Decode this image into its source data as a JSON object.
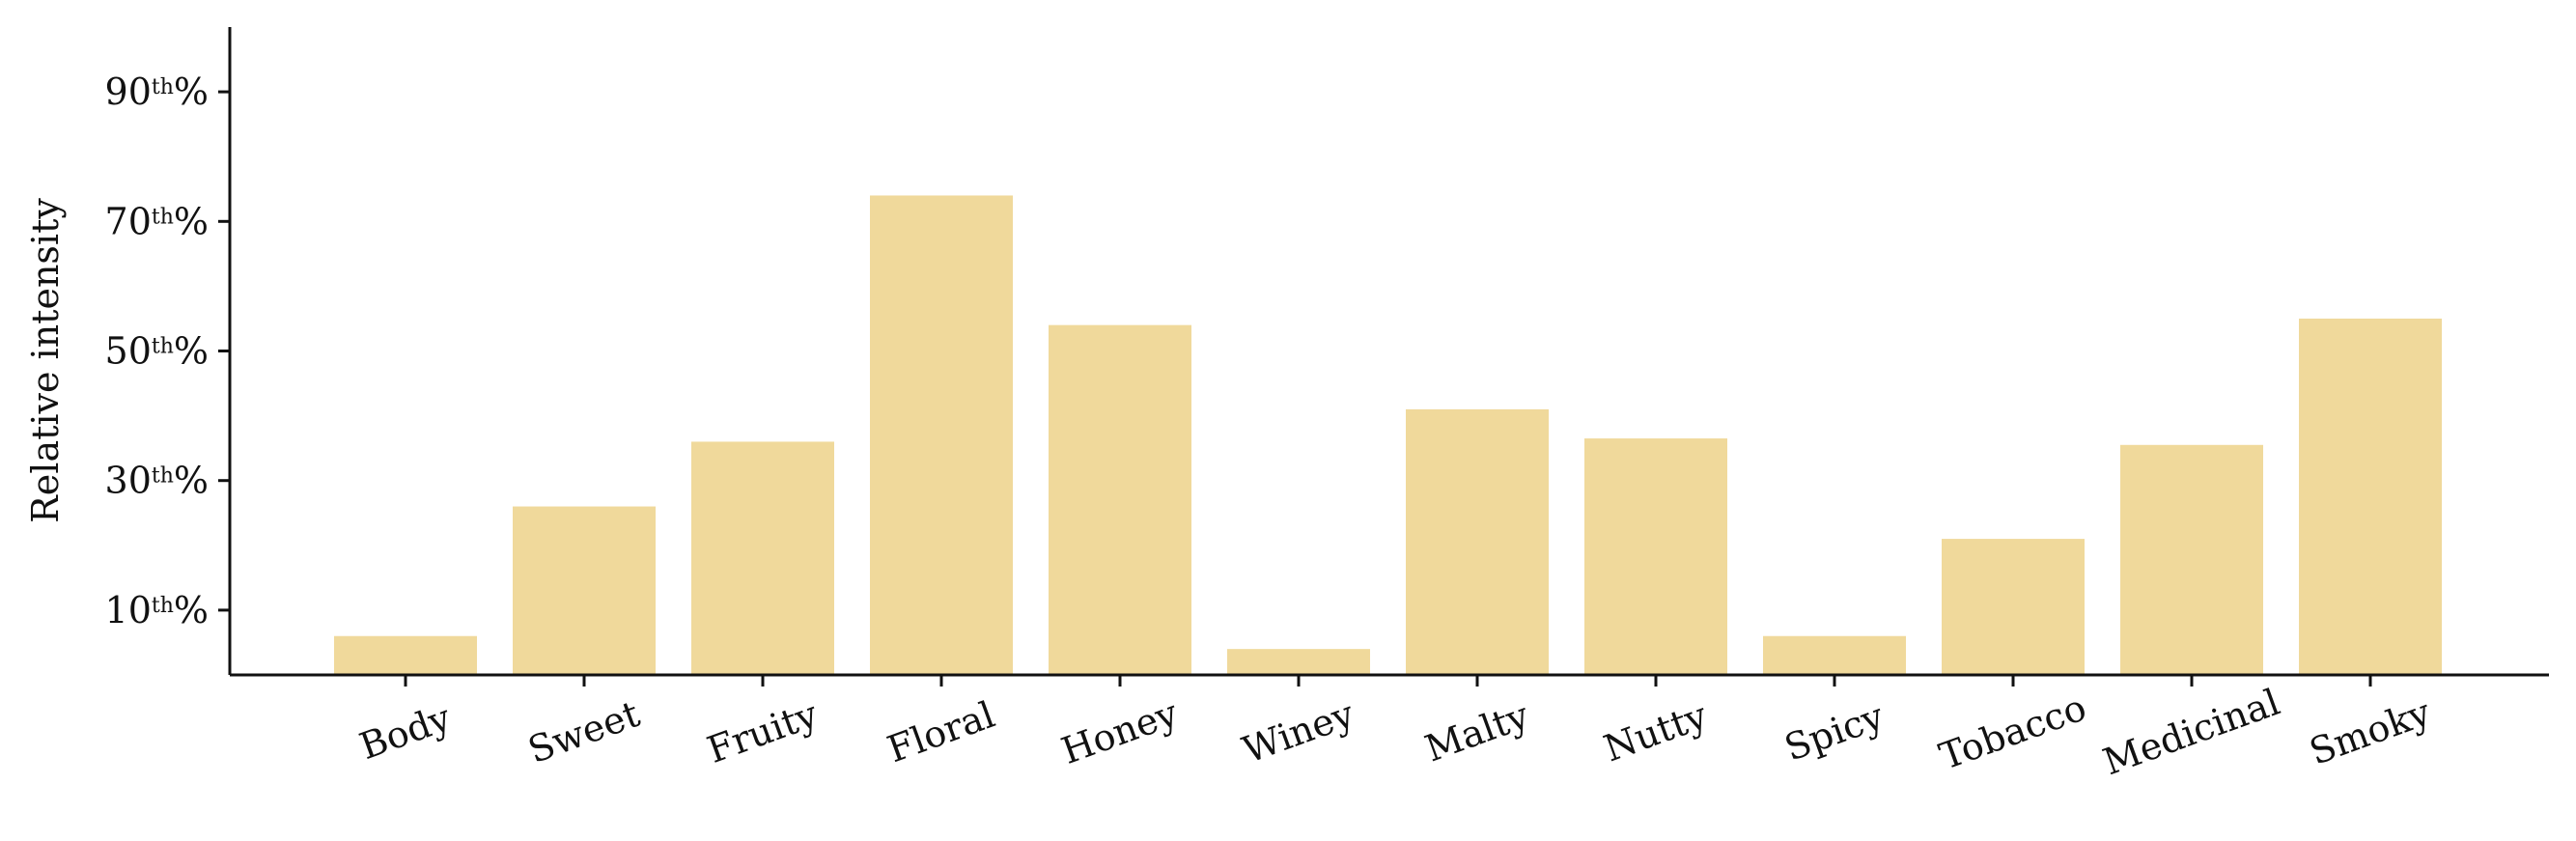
{
  "chart_data": {
    "type": "bar",
    "title": "",
    "xlabel": "",
    "ylabel": "Relative intensity",
    "ylim": [
      0,
      100
    ],
    "yticks": [
      {
        "value": 10,
        "number": "10",
        "sup": "th",
        "suffix": "%"
      },
      {
        "value": 30,
        "number": "30",
        "sup": "th",
        "suffix": "%"
      },
      {
        "value": 50,
        "number": "50",
        "sup": "th",
        "suffix": "%"
      },
      {
        "value": 70,
        "number": "70",
        "sup": "th",
        "suffix": "%"
      },
      {
        "value": 90,
        "number": "90",
        "sup": "th",
        "suffix": "%"
      }
    ],
    "categories": [
      "Body",
      "Sweet",
      "Fruity",
      "Floral",
      "Honey",
      "Winey",
      "Malty",
      "Nutty",
      "Spicy",
      "Tobacco",
      "Medicinal",
      "Smoky"
    ],
    "values": [
      6,
      26,
      36,
      74,
      54,
      4,
      41,
      36.5,
      6,
      21,
      35.5,
      55
    ],
    "bar_color": "#f0d99b",
    "grid": false,
    "legend": "none"
  }
}
